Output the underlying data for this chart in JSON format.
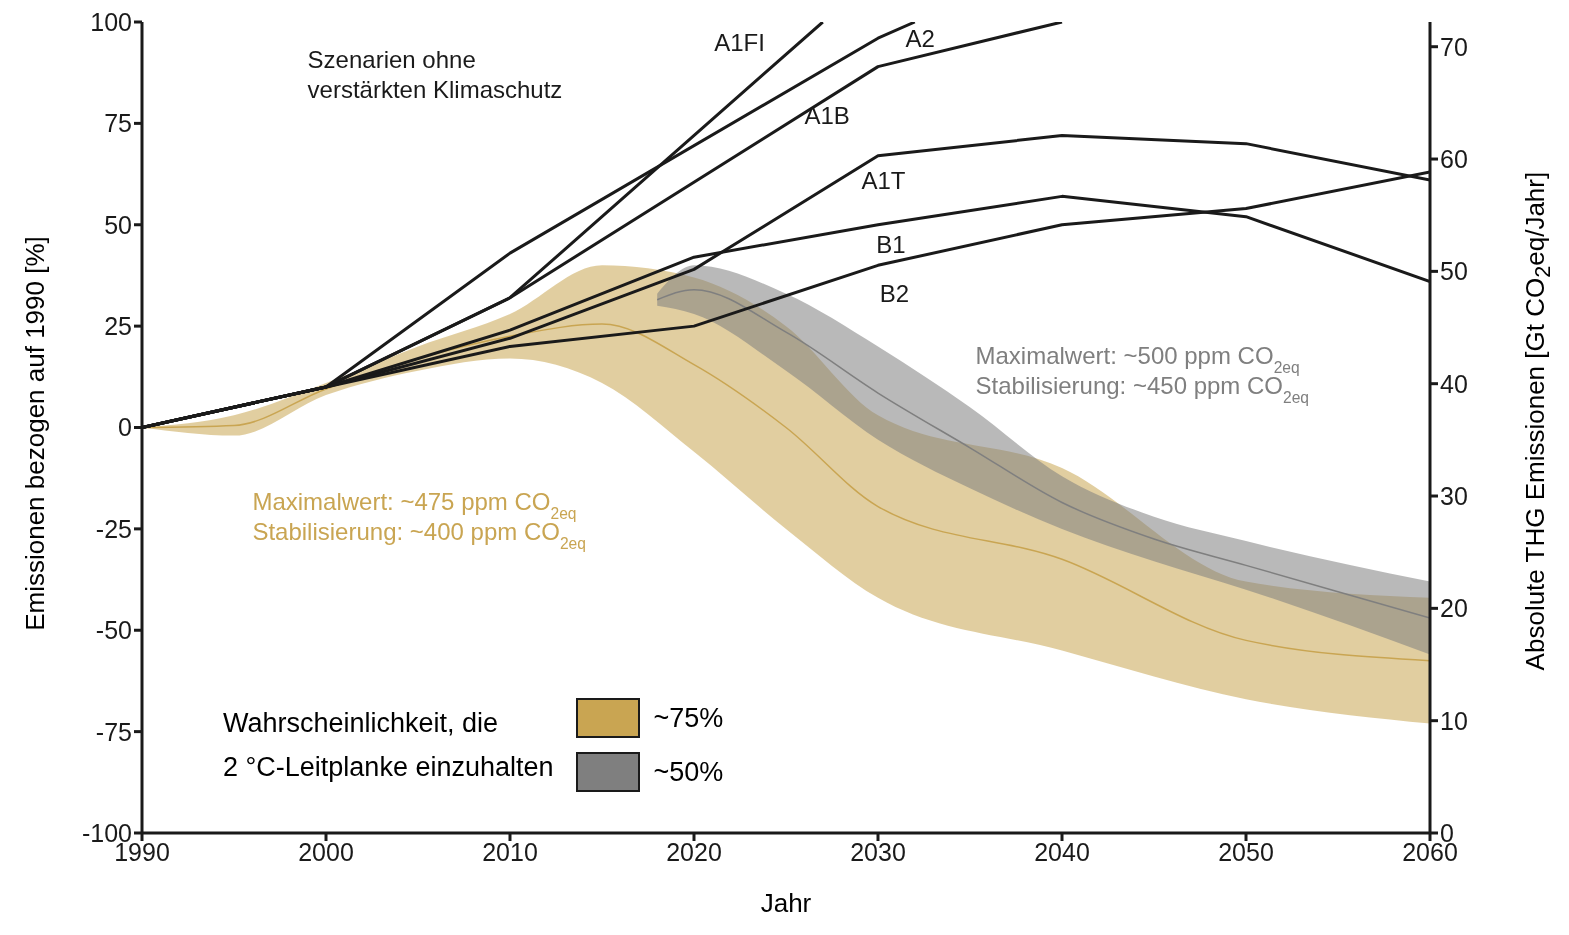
{
  "chart_data": {
    "type": "line",
    "xlabel": "Jahr",
    "ylabel": "Emissionen bezogen auf 1990 [%]",
    "y2label": "Absolute THG Emissionen [Gt CO$_{2}$eq/Jahr]",
    "legend_title": "Wahrscheinlichkeit, die\n2 °C-Leitplanke einzuhalten",
    "legend": "bottom left",
    "grid": false,
    "xlim": [
      1990,
      2060
    ],
    "xticks": [
      1990,
      2000,
      2010,
      2020,
      2030,
      2040,
      2050,
      2060
    ],
    "ylim": [
      -100,
      100
    ],
    "yticks": [
      -100,
      -75,
      -50,
      -25,
      0,
      25,
      50,
      75,
      100
    ],
    "y2lim": [
      0,
      72.2
    ],
    "y2ticks": [
      0,
      10,
      20,
      30,
      40,
      50,
      60,
      70
    ],
    "series": [
      {
        "name": "~75%",
        "color": "#c9a552",
        "x": [
          1990,
          1995,
          2000,
          2005,
          2010,
          2015,
          2020,
          2025,
          2030,
          2040,
          2050,
          2060
        ],
        "lower": [
          0,
          -2,
          8,
          14,
          17,
          11,
          -6,
          -25,
          -42,
          -55,
          -67,
          -73
        ],
        "upper": [
          0,
          3,
          11,
          20,
          28,
          40,
          37,
          25,
          3,
          -10,
          -38,
          -42
        ],
        "values": [
          0,
          0.5,
          9.5,
          17,
          22.5,
          25.5,
          15.5,
          0,
          -19.5,
          -32.5,
          -52.5,
          -57.5
        ]
      },
      {
        "name": "~50%",
        "color": "#7f7f7f",
        "x": [
          2018,
          2020,
          2025,
          2030,
          2035,
          2040,
          2045,
          2050,
          2060
        ],
        "lower": [
          30,
          28,
          14,
          -3,
          -15,
          -25,
          -33,
          -40,
          -56
        ],
        "upper": [
          33,
          40,
          33,
          20,
          5,
          -12,
          -22,
          -28,
          -38
        ],
        "values": [
          31.5,
          34,
          23.5,
          8.5,
          -5,
          -18.5,
          -27.5,
          -34,
          -47
        ]
      },
      {
        "name": "A1FI",
        "color": "#1a1a1a",
        "x": [
          1990,
          2000,
          2010,
          2027
        ],
        "values": [
          0,
          10,
          32,
          100
        ]
      },
      {
        "name": "A2",
        "color": "#1a1a1a",
        "x": [
          1990,
          2000,
          2010,
          2030,
          2032
        ],
        "values": [
          0,
          10,
          43,
          96,
          100
        ]
      },
      {
        "name": "A1B",
        "color": "#1a1a1a",
        "x": [
          1990,
          2000,
          2010,
          2030,
          2040
        ],
        "values": [
          0,
          10,
          32,
          89,
          100
        ]
      },
      {
        "name": "A1T",
        "color": "#1a1a1a",
        "x": [
          1990,
          2000,
          2010,
          2020,
          2030,
          2040,
          2050,
          2060
        ],
        "values": [
          0,
          10,
          22,
          39,
          67,
          72,
          70,
          61
        ]
      },
      {
        "name": "B1",
        "color": "#1a1a1a",
        "x": [
          1990,
          2000,
          2010,
          2020,
          2030,
          2040,
          2050,
          2060
        ],
        "values": [
          0,
          10,
          24,
          42,
          50,
          57,
          52,
          36
        ]
      },
      {
        "name": "B2",
        "color": "#1a1a1a",
        "x": [
          1990,
          2000,
          2010,
          2020,
          2030,
          2040,
          2050,
          2060
        ],
        "values": [
          0,
          10,
          20,
          25,
          40,
          50,
          54,
          63
        ]
      }
    ],
    "annotations": [
      "Szenarien ohne\nverstärkten Klimaschutz",
      "Maximalwert: ~475 ppm CO$_{2eq}$\nStabilisierung: ~400 ppm CO$_{2eq}$",
      "Maximalwert: ~500 ppm CO$_{2eq}$\nStabilisierung: ~450 ppm CO$_{2eq}$"
    ]
  }
}
